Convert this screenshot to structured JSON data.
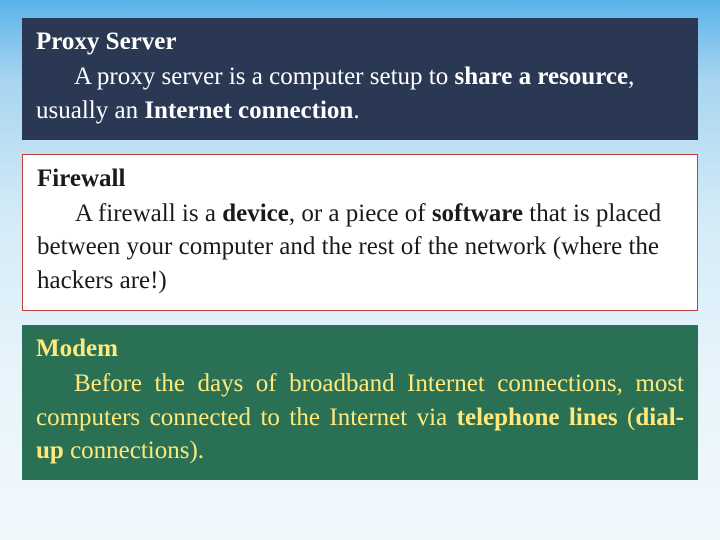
{
  "background_gradient": [
    "#5ab3e8",
    "#a8d5f0",
    "#d4ebf7",
    "#e8f4fb",
    "#f0f8fc"
  ],
  "boxes": {
    "proxy": {
      "title": "Proxy Server",
      "body_html": "A proxy server is a computer setup to <b>share a resource</b>, usually an <b>Internet connection</b>.",
      "bg_color": "#2b3854",
      "text_color": "#ffffff",
      "title_fontsize": 25,
      "body_fontsize": 25,
      "justify": false
    },
    "firewall": {
      "title": "Firewall",
      "body_html": "A firewall is a <b>device</b>, or a piece of <b>software</b> that is placed between your computer and the rest of the network (where the hackers are!)",
      "bg_color": "#ffffff",
      "border_color": "#c04040",
      "text_color": "#1a1a1a",
      "title_fontsize": 25,
      "body_fontsize": 25,
      "justify": false
    },
    "modem": {
      "title": "Modem",
      "body_html": "Before the days of broadband Internet connections, most computers connected to the Internet via <b>telephone lines</b> (<b>dial-up</b> connections).",
      "bg_color": "#2a7055",
      "text_color": "#ffe97a",
      "title_fontsize": 25,
      "body_fontsize": 25,
      "justify": true
    }
  }
}
